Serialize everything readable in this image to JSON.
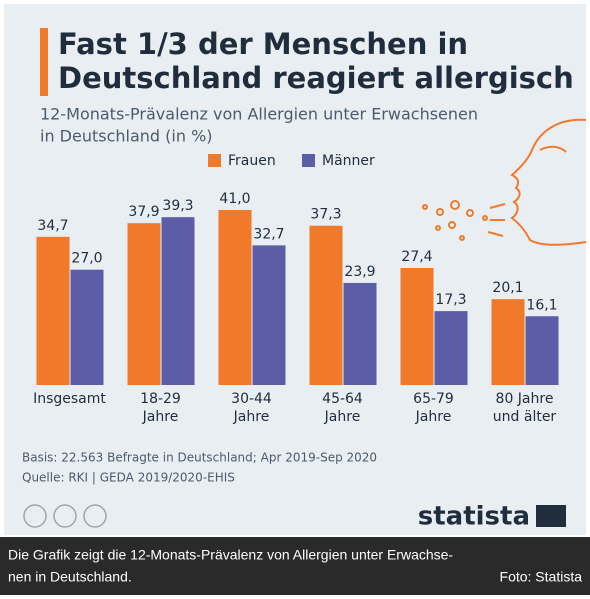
{
  "chart_data": {
    "type": "bar",
    "title_lines": [
      "Fast 1/3 der Menschen in",
      "Deutschland reagiert allergisch"
    ],
    "subtitle_lines": [
      "12-Monats-Prävalenz von Allergien unter Erwachsenen",
      "in Deutschland (in %)"
    ],
    "categories": [
      [
        "Insgesamt"
      ],
      [
        "18-29",
        "Jahre"
      ],
      [
        "30-44",
        "Jahre"
      ],
      [
        "45-64",
        "Jahre"
      ],
      [
        "65-79",
        "Jahre"
      ],
      [
        "80 Jahre",
        "und älter"
      ]
    ],
    "series": [
      {
        "name": "Frauen",
        "color": "#f07a2a",
        "values": [
          34.7,
          37.9,
          41.0,
          37.3,
          27.4,
          20.1
        ],
        "value_labels": [
          "34,7",
          "37,9",
          "41,0",
          "37,3",
          "27,4",
          "20,1"
        ]
      },
      {
        "name": "Männer",
        "color": "#5b5ea6",
        "values": [
          27.0,
          39.3,
          32.7,
          23.9,
          17.3,
          16.1
        ],
        "value_labels": [
          "27,0",
          "39,3",
          "32,7",
          "23,9",
          "17,3",
          "16,1"
        ]
      }
    ],
    "notes": [
      "Basis: 22.563 Befragte in Deutschland; Apr 2019-Sep 2020",
      "Quelle: RKI | GEDA 2019/2020-EHIS"
    ],
    "brand": "statista"
  },
  "caption": {
    "lines": [
      "Die Grafik zeigt die 12-Monats-Prävalenz von Allergien unter Erwachse-",
      "nen in Deutschland."
    ],
    "credit": "Foto: Statista"
  }
}
